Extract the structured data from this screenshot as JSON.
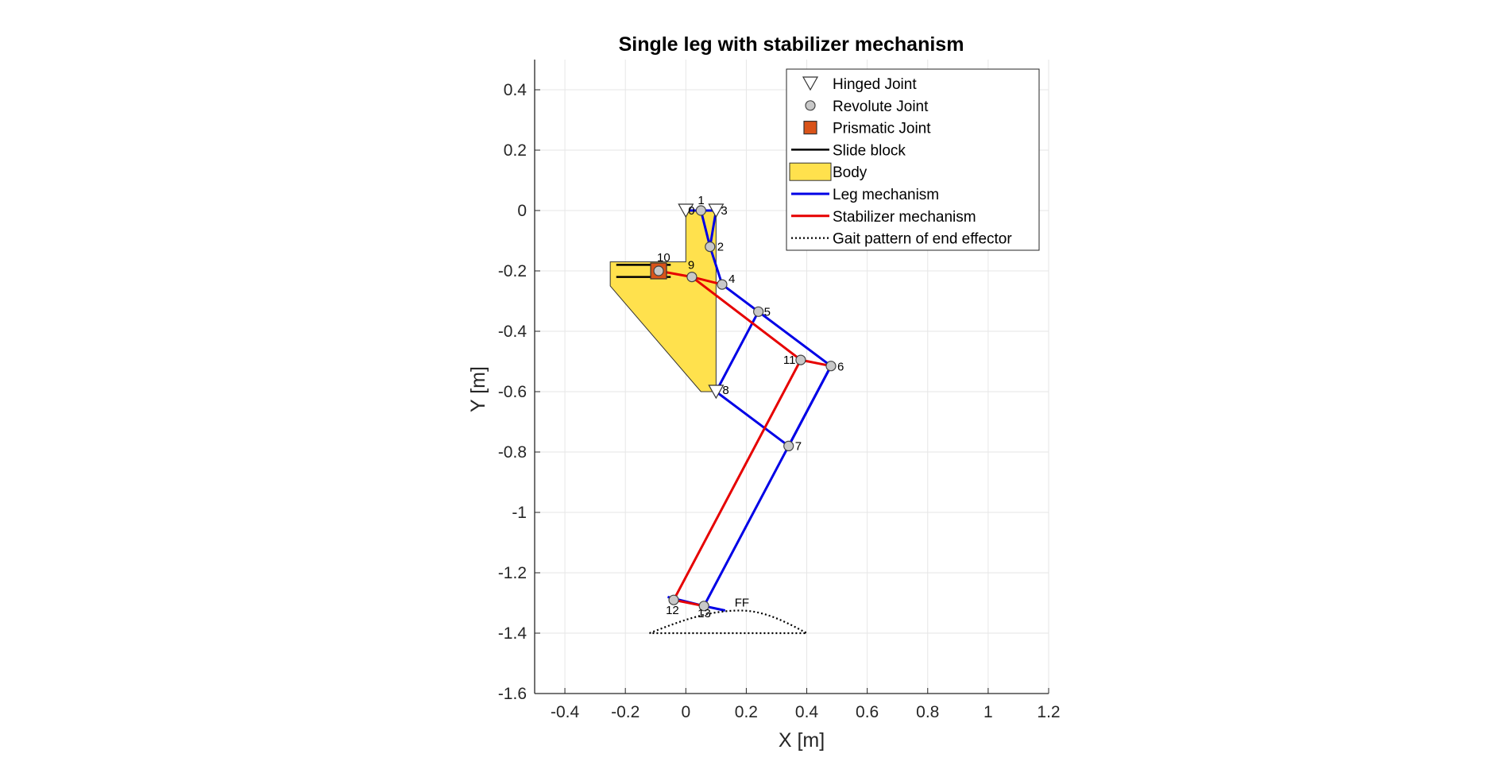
{
  "chart_data": {
    "type": "line",
    "title": "Single leg with stabilizer mechanism",
    "xlabel": "X [m]",
    "ylabel": "Y [m]",
    "xlim": [
      -0.5,
      1.2
    ],
    "ylim": [
      -1.6,
      0.5
    ],
    "xticks": [
      -0.4,
      -0.2,
      0,
      0.2,
      0.4,
      0.6,
      0.8,
      1,
      1.2
    ],
    "xtick_labels": [
      "-0.4",
      "-0.2",
      "0",
      "0.2",
      "0.4",
      "0.6",
      "0.8",
      "1",
      "1.2"
    ],
    "yticks": [
      -1.6,
      -1.4,
      -1.2,
      -1,
      -0.8,
      -0.6,
      -0.4,
      -0.2,
      0,
      0.2,
      0.4
    ],
    "ytick_labels": [
      "-1.6",
      "-1.4",
      "-1.2",
      "-1",
      "-0.8",
      "-0.6",
      "-0.4",
      "-0.2",
      "0",
      "0.2",
      "0.4"
    ],
    "grid": true,
    "legend_position": "top-right",
    "colors": {
      "leg": "#0000e6",
      "stabilizer": "#e60000",
      "body_fill": "#ffe14d",
      "joint_fill": "#c8c8c8",
      "prismatic_fill": "#d95319",
      "grid": "#e6e6e6"
    },
    "legend": [
      {
        "label": "Hinged Joint",
        "symbol": "triangle-down"
      },
      {
        "label": "Revolute Joint",
        "symbol": "circle"
      },
      {
        "label": "Prismatic Joint",
        "symbol": "square"
      },
      {
        "label": "Slide block",
        "symbol": "line-black"
      },
      {
        "label": "Body",
        "symbol": "patch-yellow"
      },
      {
        "label": "Leg mechanism",
        "symbol": "line-blue"
      },
      {
        "label": "Stabilizer mechanism",
        "symbol": "line-red"
      },
      {
        "label": "Gait pattern of end effector",
        "symbol": "line-dotted"
      }
    ],
    "body_polygon": [
      [
        0,
        0
      ],
      [
        0.1,
        0
      ],
      [
        0.1,
        -0.6
      ],
      [
        0.05,
        -0.6
      ],
      [
        -0.25,
        -0.25
      ],
      [
        -0.25,
        -0.17
      ],
      [
        0,
        -0.17
      ]
    ],
    "slide_block": [
      [
        [
          -0.23,
          -0.18
        ],
        [
          -0.05,
          -0.18
        ]
      ],
      [
        [
          -0.23,
          -0.22
        ],
        [
          -0.05,
          -0.22
        ]
      ]
    ],
    "joints": [
      {
        "id": "0",
        "label": "0",
        "x": 0.0,
        "y": 0.0,
        "type": "hinged"
      },
      {
        "id": "1",
        "label": "1",
        "x": 0.05,
        "y": 0.0,
        "type": "revolute"
      },
      {
        "id": "3",
        "label": "3",
        "x": 0.1,
        "y": 0.0,
        "type": "hinged"
      },
      {
        "id": "2",
        "label": "2",
        "x": 0.08,
        "y": -0.12,
        "type": "revolute"
      },
      {
        "id": "9",
        "label": "9",
        "x": 0.02,
        "y": -0.22,
        "type": "revolute"
      },
      {
        "id": "10",
        "label": "10",
        "x": -0.09,
        "y": -0.2,
        "type": "prismatic"
      },
      {
        "id": "4",
        "label": "4",
        "x": 0.12,
        "y": -0.245,
        "type": "revolute"
      },
      {
        "id": "5",
        "label": "5",
        "x": 0.24,
        "y": -0.335,
        "type": "revolute"
      },
      {
        "id": "11",
        "label": "11",
        "x": 0.38,
        "y": -0.495,
        "type": "revolute"
      },
      {
        "id": "6",
        "label": "6",
        "x": 0.48,
        "y": -0.515,
        "type": "revolute"
      },
      {
        "id": "8",
        "label": "8",
        "x": 0.1,
        "y": -0.6,
        "type": "hinged"
      },
      {
        "id": "7",
        "label": "7",
        "x": 0.34,
        "y": -0.78,
        "type": "revolute"
      },
      {
        "id": "12",
        "label": "12",
        "x": -0.04,
        "y": -1.29,
        "type": "revolute"
      },
      {
        "id": "13",
        "label": "13",
        "x": 0.06,
        "y": -1.31,
        "type": "revolute"
      },
      {
        "id": "FF",
        "label": "FF",
        "x": 0.13,
        "y": -1.325,
        "type": "end"
      }
    ],
    "leg_links": [
      [
        [
          0.0,
          0.0
        ],
        [
          0.05,
          0.0
        ],
        [
          0.08,
          -0.12
        ],
        [
          0.12,
          -0.245
        ],
        [
          0.24,
          -0.335
        ],
        [
          0.1,
          -0.6
        ],
        [
          0.34,
          -0.78
        ],
        [
          0.48,
          -0.515
        ],
        [
          0.12,
          -0.245
        ]
      ],
      [
        [
          0.05,
          0.0
        ],
        [
          0.1,
          0.0
        ],
        [
          0.08,
          -0.12
        ]
      ],
      [
        [
          0.48,
          -0.515
        ],
        [
          0.06,
          -1.31
        ],
        [
          0.13,
          -1.325
        ]
      ],
      [
        [
          0.06,
          -1.31
        ],
        [
          -0.06,
          -1.28
        ]
      ]
    ],
    "stabilizer_links": [
      [
        [
          -0.09,
          -0.2
        ],
        [
          0.02,
          -0.22
        ],
        [
          0.38,
          -0.495
        ],
        [
          0.48,
          -0.515
        ]
      ],
      [
        [
          0.02,
          -0.22
        ],
        [
          0.12,
          -0.245
        ]
      ],
      [
        [
          0.38,
          -0.495
        ],
        [
          -0.04,
          -1.29
        ],
        [
          0.06,
          -1.31
        ]
      ]
    ],
    "gait_pattern": {
      "flat_y": -1.4,
      "x_start": -0.12,
      "x_end": 0.4,
      "peak_y": -1.325,
      "peak_x": 0.18
    }
  }
}
